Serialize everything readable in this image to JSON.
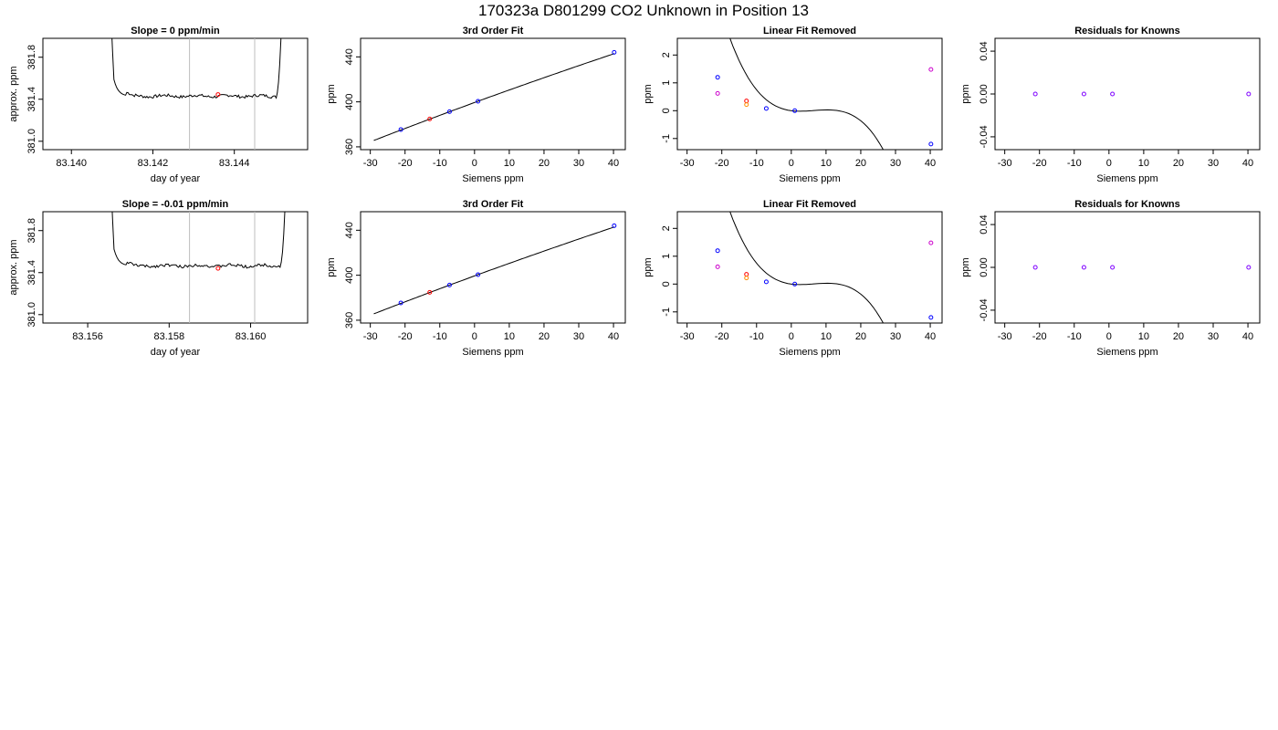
{
  "figure": {
    "title": "170323a     D801299   CO2 Unknown in Position  13"
  },
  "chart_data": [
    {
      "type": "line",
      "row": 0,
      "col": 0,
      "title": "Slope =  0  ppm/min",
      "xlabel": "day of year",
      "ylabel": "approx. ppm",
      "xlim": [
        83.1393,
        83.1458
      ],
      "ylim": [
        380.92,
        381.98
      ],
      "xticks": [
        "83.140",
        "83.142",
        "83.144"
      ],
      "xtick_values": [
        83.14,
        83.142,
        83.144
      ],
      "yticks": [
        "381.0",
        "381.4",
        "381.8"
      ],
      "ytick_values": [
        381.0,
        381.4,
        381.8
      ],
      "vlines": [
        83.1429,
        83.1445
      ],
      "trace_start": 83.1409,
      "trace_end": 83.1452,
      "plateau_level": 381.43,
      "marker": {
        "x": 83.1436,
        "y": 381.445,
        "color": "#ff0000"
      }
    },
    {
      "type": "line",
      "row": 0,
      "col": 1,
      "title": "3rd Order Fit",
      "xlabel": "Siemens ppm",
      "ylabel": "ppm",
      "xlim": [
        -32.8,
        43.4
      ],
      "ylim": [
        357.5,
        456.5
      ],
      "xticks": [
        "-30",
        "-20",
        "-10",
        "0",
        "10",
        "20",
        "30",
        "40"
      ],
      "xtick_values": [
        -30,
        -20,
        -10,
        0,
        10,
        20,
        30,
        40
      ],
      "yticks": [
        "360",
        "400",
        "440"
      ],
      "ytick_values": [
        360,
        400,
        440
      ],
      "curve": {
        "x0": -29,
        "x1": 40.3,
        "intercept": 399.4,
        "slope": 1.1285
      },
      "points": [
        {
          "x": -21.2,
          "y": 375.4,
          "color": "#0000ff"
        },
        {
          "x": -12.9,
          "y": 384.8,
          "color": "#ff0000"
        },
        {
          "x": -7.2,
          "y": 391.3,
          "color": "#0000ff"
        },
        {
          "x": 1.0,
          "y": 400.5,
          "color": "#0000ff"
        },
        {
          "x": 40.2,
          "y": 444.0,
          "color": "#0000ff"
        }
      ]
    },
    {
      "type": "scatter",
      "row": 0,
      "col": 2,
      "title": "Linear Fit Removed",
      "xlabel": "Siemens ppm",
      "ylabel": "ppm",
      "xlim": [
        -32.8,
        43.4
      ],
      "ylim": [
        -1.4,
        2.6
      ],
      "xticks": [
        "-30",
        "-20",
        "-10",
        "0",
        "10",
        "20",
        "30",
        "40"
      ],
      "xtick_values": [
        -30,
        -20,
        -10,
        0,
        10,
        20,
        30,
        40
      ],
      "yticks": [
        "-1",
        "0",
        "1",
        "2"
      ],
      "ytick_values": [
        -1,
        0,
        1,
        2
      ],
      "curve": {
        "x0": -30,
        "x1": 40.3,
        "a": 0.0001545,
        "b": 0.003295,
        "c": -0.01012,
        "d": 0.0
      },
      "points": [
        {
          "x": -21.2,
          "y": 1.2,
          "color": "#0000ff"
        },
        {
          "x": -21.2,
          "y": 0.62,
          "color": "#cc00cc"
        },
        {
          "x": -12.9,
          "y": 0.35,
          "color": "#ff0000"
        },
        {
          "x": -12.9,
          "y": 0.22,
          "color": "#ff8c00"
        },
        {
          "x": -7.2,
          "y": 0.08,
          "color": "#0000ff"
        },
        {
          "x": 1.0,
          "y": 0.0,
          "color": "#0000ff"
        },
        {
          "x": 40.2,
          "y": 1.48,
          "color": "#cc00cc"
        },
        {
          "x": 40.2,
          "y": -1.2,
          "color": "#0000ff"
        }
      ]
    },
    {
      "type": "scatter",
      "row": 0,
      "col": 3,
      "title": "Residuals for Knowns",
      "xlabel": "Siemens ppm",
      "ylabel": "ppm",
      "xlim": [
        -32.8,
        43.4
      ],
      "ylim": [
        -0.052,
        0.052
      ],
      "xticks": [
        "-30",
        "-20",
        "-10",
        "0",
        "10",
        "20",
        "30",
        "40"
      ],
      "xtick_values": [
        -30,
        -20,
        -10,
        0,
        10,
        20,
        30,
        40
      ],
      "yticks": [
        "-0.04",
        "0.00",
        "0.04"
      ],
      "ytick_values": [
        -0.04,
        0.0,
        0.04
      ],
      "points": [
        {
          "x": -21.2,
          "y": 0.0,
          "color": "#7f00ff"
        },
        {
          "x": -7.2,
          "y": 0.0,
          "color": "#7f00ff"
        },
        {
          "x": 1.0,
          "y": 0.0,
          "color": "#7f00ff"
        },
        {
          "x": 40.2,
          "y": 0.0,
          "color": "#7f00ff"
        }
      ]
    },
    {
      "type": "line",
      "row": 1,
      "col": 0,
      "title": "Slope =  -0.01  ppm/min",
      "xlabel": "day of year",
      "ylabel": "approx. ppm",
      "xlim": [
        83.1549,
        83.1614
      ],
      "ylim": [
        380.92,
        381.98
      ],
      "xticks": [
        "83.156",
        "83.158",
        "83.160"
      ],
      "xtick_values": [
        83.156,
        83.158,
        83.16
      ],
      "yticks": [
        "381.0",
        "381.4",
        "381.8"
      ],
      "ytick_values": [
        381.0,
        381.4,
        381.8
      ],
      "vlines": [
        83.1585,
        83.1601
      ],
      "trace_start": 83.1565,
      "trace_end": 83.1609,
      "plateau_level": 381.465,
      "marker": {
        "x": 83.1592,
        "y": 381.44,
        "color": "#ff0000"
      }
    },
    {
      "type": "line",
      "row": 1,
      "col": 1,
      "title": "3rd Order Fit",
      "xlabel": "Siemens ppm",
      "ylabel": "ppm",
      "xlim": [
        -32.8,
        43.4
      ],
      "ylim": [
        357.5,
        456.5
      ],
      "xticks": [
        "-30",
        "-20",
        "-10",
        "0",
        "10",
        "20",
        "30",
        "40"
      ],
      "xtick_values": [
        -30,
        -20,
        -10,
        0,
        10,
        20,
        30,
        40
      ],
      "yticks": [
        "360",
        "400",
        "440"
      ],
      "ytick_values": [
        360,
        400,
        440
      ],
      "curve": {
        "x0": -29,
        "x1": 40.3,
        "intercept": 399.4,
        "slope": 1.1285
      },
      "points": [
        {
          "x": -21.2,
          "y": 375.4,
          "color": "#0000ff"
        },
        {
          "x": -12.9,
          "y": 384.8,
          "color": "#ff0000"
        },
        {
          "x": -7.2,
          "y": 391.3,
          "color": "#0000ff"
        },
        {
          "x": 1.0,
          "y": 400.5,
          "color": "#0000ff"
        },
        {
          "x": 40.2,
          "y": 444.0,
          "color": "#0000ff"
        }
      ]
    },
    {
      "type": "scatter",
      "row": 1,
      "col": 2,
      "title": "Linear Fit Removed",
      "xlabel": "Siemens ppm",
      "ylabel": "ppm",
      "xlim": [
        -32.8,
        43.4
      ],
      "ylim": [
        -1.4,
        2.6
      ],
      "xticks": [
        "-30",
        "-20",
        "-10",
        "0",
        "10",
        "20",
        "30",
        "40"
      ],
      "xtick_values": [
        -30,
        -20,
        -10,
        0,
        10,
        20,
        30,
        40
      ],
      "yticks": [
        "-1",
        "0",
        "1",
        "2"
      ],
      "ytick_values": [
        -1,
        0,
        1,
        2
      ],
      "curve": {
        "x0": -30,
        "x1": 40.3,
        "a": 0.0001545,
        "b": 0.003295,
        "c": -0.01012,
        "d": 0.0
      },
      "points": [
        {
          "x": -21.2,
          "y": 1.2,
          "color": "#0000ff"
        },
        {
          "x": -21.2,
          "y": 0.62,
          "color": "#cc00cc"
        },
        {
          "x": -12.9,
          "y": 0.35,
          "color": "#ff0000"
        },
        {
          "x": -12.9,
          "y": 0.22,
          "color": "#ff8c00"
        },
        {
          "x": -7.2,
          "y": 0.08,
          "color": "#0000ff"
        },
        {
          "x": 1.0,
          "y": 0.0,
          "color": "#0000ff"
        },
        {
          "x": 40.2,
          "y": 1.48,
          "color": "#cc00cc"
        },
        {
          "x": 40.2,
          "y": -1.2,
          "color": "#0000ff"
        }
      ]
    },
    {
      "type": "scatter",
      "row": 1,
      "col": 3,
      "title": "Residuals for Knowns",
      "xlabel": "Siemens ppm",
      "ylabel": "ppm",
      "xlim": [
        -32.8,
        43.4
      ],
      "ylim": [
        -0.052,
        0.052
      ],
      "xticks": [
        "-30",
        "-20",
        "-10",
        "0",
        "10",
        "20",
        "30",
        "40"
      ],
      "xtick_values": [
        -30,
        -20,
        -10,
        0,
        10,
        20,
        30,
        40
      ],
      "yticks": [
        "-0.04",
        "0.00",
        "0.04"
      ],
      "ytick_values": [
        -0.04,
        0.0,
        0.04
      ],
      "points": [
        {
          "x": -21.2,
          "y": 0.0,
          "color": "#7f00ff"
        },
        {
          "x": -7.2,
          "y": 0.0,
          "color": "#7f00ff"
        },
        {
          "x": 1.0,
          "y": 0.0,
          "color": "#7f00ff"
        },
        {
          "x": 40.2,
          "y": 0.0,
          "color": "#7f00ff"
        }
      ]
    }
  ]
}
